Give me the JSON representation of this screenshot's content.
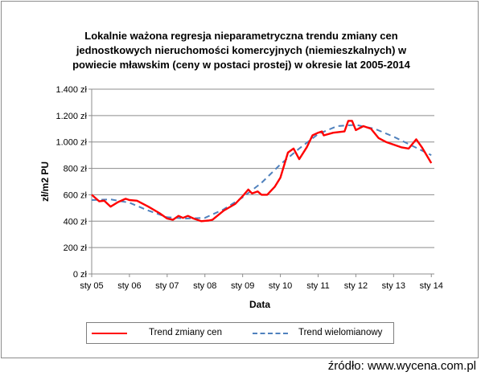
{
  "chart_data": {
    "type": "line",
    "title": [
      "Lokalnie ważona regresja nieparametryczna trendu zmiany cen",
      "jednostkowych nieruchomości komercyjnych (niemieszkalnych) w",
      "powiecie mławskim  (ceny w postaci prostej) w okresie lat 2005-2014"
    ],
    "xlabel": "Data",
    "ylabel": "zł/m2 PU",
    "x_ticks": [
      "sty 05",
      "sty 06",
      "sty 07",
      "sty 08",
      "sty 09",
      "sty 10",
      "sty 11",
      "sty 12",
      "sty 13",
      "sty 14"
    ],
    "y_ticks": [
      "0 zł",
      "200 zł",
      "400 zł",
      "600 zł",
      "800 zł",
      "1.000 zł",
      "1.200 zł",
      "1.400 zł"
    ],
    "ylim": [
      0,
      1400
    ],
    "xlim": [
      2005.0,
      2014.08
    ],
    "grid": "horizontal",
    "legend_position": "bottom",
    "series": [
      {
        "name": "Trend zmiany cen",
        "color": "#ff0000",
        "style": "solid",
        "x": [
          2005.0,
          2005.2,
          2005.33,
          2005.5,
          2005.7,
          2005.9,
          2006.0,
          2006.2,
          2006.5,
          2006.8,
          2007.0,
          2007.15,
          2007.3,
          2007.42,
          2007.55,
          2007.7,
          2007.9,
          2008.1,
          2008.2,
          2008.5,
          2008.8,
          2009.0,
          2009.15,
          2009.25,
          2009.4,
          2009.5,
          2009.65,
          2009.85,
          2010.0,
          2010.2,
          2010.35,
          2010.5,
          2010.7,
          2010.85,
          2011.0,
          2011.1,
          2011.15,
          2011.4,
          2011.7,
          2011.8,
          2011.9,
          2012.0,
          2012.2,
          2012.4,
          2012.6,
          2012.8,
          2013.0,
          2013.2,
          2013.4,
          2013.6,
          2013.75,
          2014.0
        ],
        "y": [
          600,
          550,
          555,
          510,
          545,
          570,
          560,
          555,
          510,
          460,
          420,
          410,
          440,
          425,
          440,
          420,
          400,
          405,
          410,
          480,
          530,
          590,
          640,
          610,
          625,
          600,
          600,
          660,
          730,
          920,
          950,
          870,
          960,
          1050,
          1070,
          1080,
          1050,
          1070,
          1080,
          1160,
          1160,
          1090,
          1120,
          1100,
          1030,
          1000,
          980,
          960,
          950,
          1020,
          960,
          840
        ]
      },
      {
        "name": "Trend wielomianowy",
        "color": "#4f81bd",
        "style": "dashed",
        "x": [
          2005.0,
          2005.5,
          2006.0,
          2006.5,
          2007.0,
          2007.5,
          2008.0,
          2008.5,
          2009.0,
          2009.5,
          2010.0,
          2010.5,
          2011.0,
          2011.5,
          2012.0,
          2012.5,
          2013.0,
          2013.5,
          2014.0
        ],
        "y": [
          560,
          565,
          540,
          480,
          430,
          420,
          425,
          490,
          580,
          690,
          830,
          950,
          1060,
          1120,
          1130,
          1100,
          1040,
          970,
          900
        ]
      }
    ]
  },
  "source": "źródło: www.wycena.com.pl"
}
